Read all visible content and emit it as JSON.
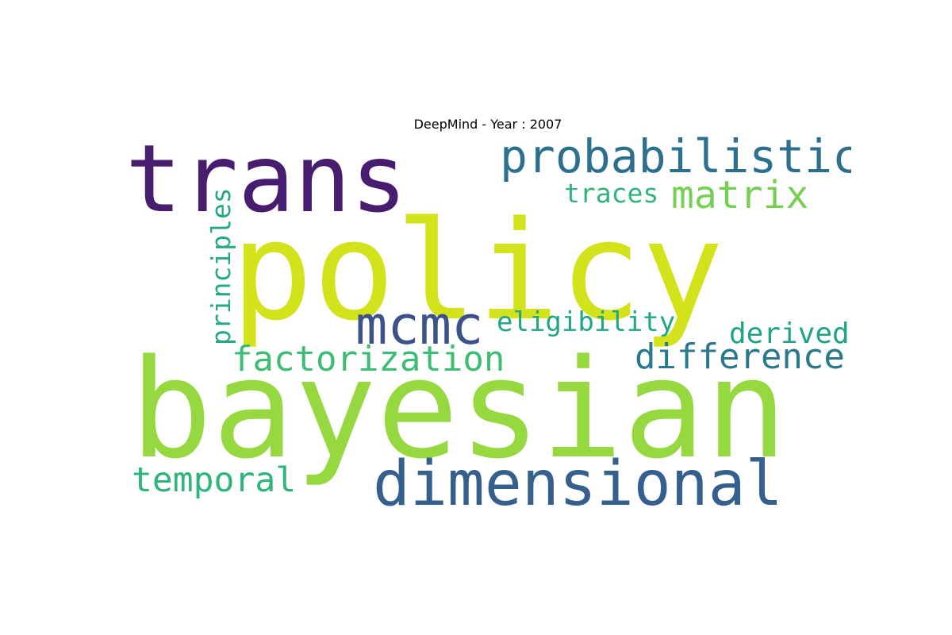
{
  "title": "DeepMind - Year : 2007",
  "words": [
    {
      "text": "bayesian",
      "color": "#95d840"
    },
    {
      "text": "policy",
      "color": "#d2e21b"
    },
    {
      "text": "trans",
      "color": "#481c6e"
    },
    {
      "text": "dimensional",
      "color": "#355f8d"
    },
    {
      "text": "probabilistic",
      "color": "#2d708e"
    },
    {
      "text": "mcmc",
      "color": "#3b528b"
    },
    {
      "text": "matrix",
      "color": "#75d054"
    },
    {
      "text": "factorization",
      "color": "#3dbc74"
    },
    {
      "text": "difference",
      "color": "#2a788e"
    },
    {
      "text": "temporal",
      "color": "#2fb47c"
    },
    {
      "text": "eligibility",
      "color": "#21a685"
    },
    {
      "text": "traces",
      "color": "#2fb47c"
    },
    {
      "text": "derived",
      "color": "#20a386"
    },
    {
      "text": "principles",
      "color": "#23a983"
    }
  ]
}
